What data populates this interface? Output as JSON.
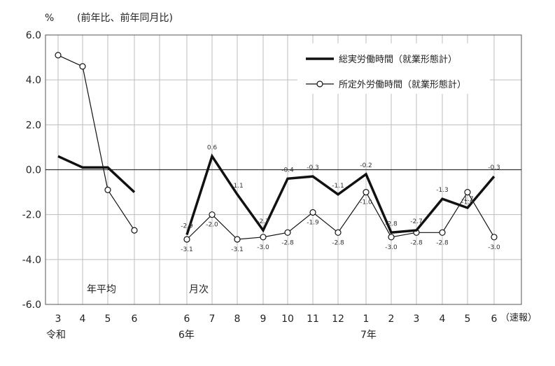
{
  "chart_data": {
    "type": "line",
    "ylabel": "%",
    "subtitle": "(前年比、前年同月比)",
    "ylim": [
      -6.0,
      6.0
    ],
    "yticks": [
      "6.0",
      "4.0",
      "2.0",
      "0.0",
      "-2.0",
      "-4.0",
      "-6.0"
    ],
    "grid": true,
    "legend_position": "top-right",
    "annual": {
      "section_label": "年平均",
      "era_label": "令和",
      "categories": [
        "3",
        "4",
        "5",
        "6"
      ],
      "series": [
        {
          "name": "総実労働時間（就業形態計）",
          "style": "thick",
          "values": [
            0.6,
            0.1,
            0.1,
            -1.0
          ]
        },
        {
          "name": "所定外労働時間（就業形態計）",
          "style": "marker",
          "values": [
            5.1,
            4.6,
            -0.9,
            -2.7
          ]
        }
      ]
    },
    "monthly": {
      "section_label": "月次",
      "year_labels": [
        "6年",
        "7年"
      ],
      "categories": [
        "6",
        "7",
        "8",
        "9",
        "10",
        "11",
        "12",
        "1",
        "2",
        "3",
        "4",
        "5",
        "6"
      ],
      "suffix_label": "（速報）",
      "series": [
        {
          "name": "総実労働時間（就業形態計）",
          "style": "thick",
          "values": [
            -2.9,
            0.6,
            -1.1,
            -2.7,
            -0.4,
            -0.3,
            -1.1,
            -0.2,
            -2.8,
            -2.7,
            -1.3,
            -1.7,
            -0.3
          ],
          "labels": [
            "-2.9",
            "0.6",
            "-1.1",
            "-2.7",
            "-0.4",
            "-0.3",
            "-1.1",
            "-0.2",
            "-2.8",
            "-2.7",
            "-1.3",
            "-1.7",
            "-0.3"
          ]
        },
        {
          "name": "所定外労働時間（就業形態計）",
          "style": "marker",
          "values": [
            -3.1,
            -2.0,
            -3.1,
            -3.0,
            -2.8,
            -1.9,
            -2.8,
            -1.0,
            -3.0,
            -2.8,
            -2.8,
            -1.0,
            -3.0
          ],
          "labels": [
            "-3.1",
            "-2.0",
            "-3.1",
            "-3.0",
            "-2.8",
            "-1.9",
            "-2.8",
            "-1.0",
            "-3.0",
            "-2.8",
            "-2.8",
            "-1.0",
            "-3.0"
          ]
        }
      ]
    },
    "legend": [
      "総実労働時間（就業形態計）",
      "所定外労働時間（就業形態計）"
    ]
  }
}
